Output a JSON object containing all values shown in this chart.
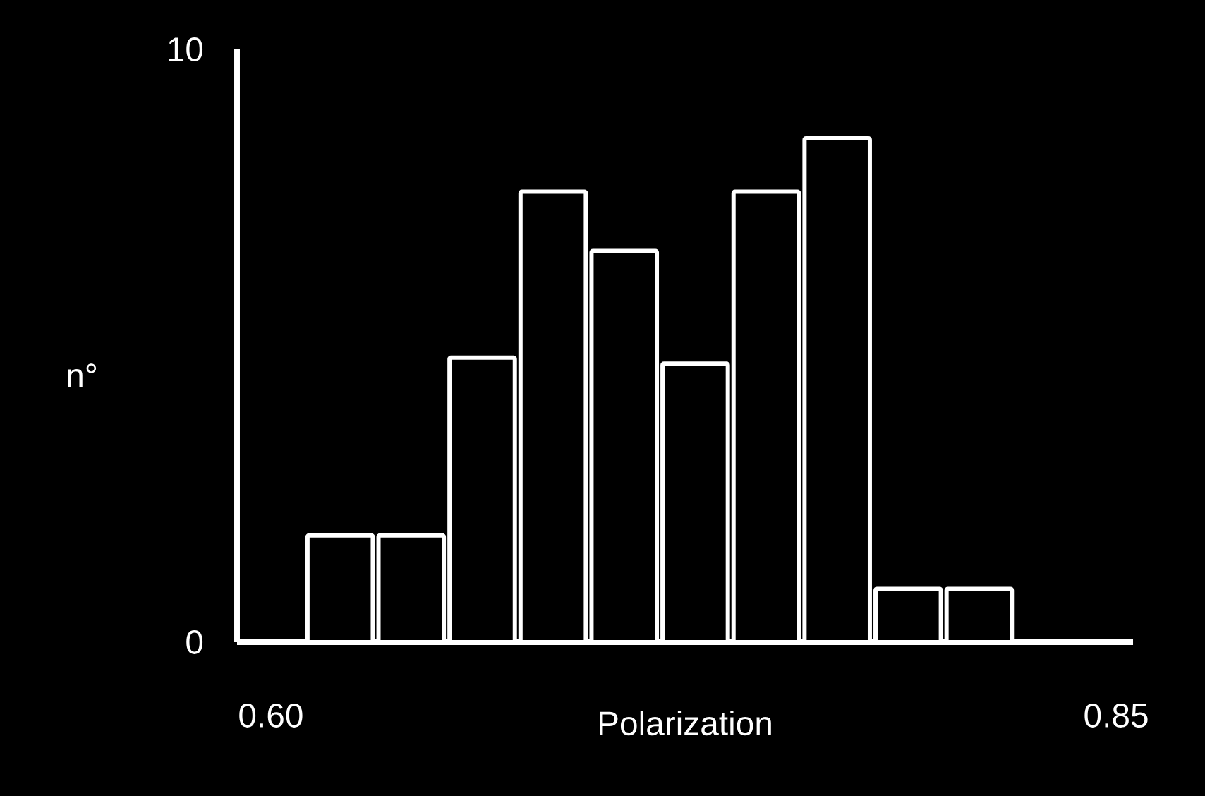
{
  "chart_data": {
    "type": "histogram",
    "xlabel": "Polarization",
    "ylabel": "n°",
    "bins": [
      0.61,
      0.631,
      0.652,
      0.673,
      0.694,
      0.715,
      0.736,
      0.757,
      0.778,
      0.799,
      0.82
    ],
    "values": [
      1.8,
      1.8,
      4.8,
      7.6,
      6.6,
      4.7,
      7.6,
      8.5,
      0.9,
      0.9
    ],
    "color": "#ffffff",
    "xlim": [
      0.59,
      0.855
    ],
    "ylim": [
      0,
      10
    ],
    "xticks": [
      {
        "value": 0.6,
        "label": "0.60"
      },
      0.85
    ],
    "yticks": [
      0,
      10
    ]
  }
}
